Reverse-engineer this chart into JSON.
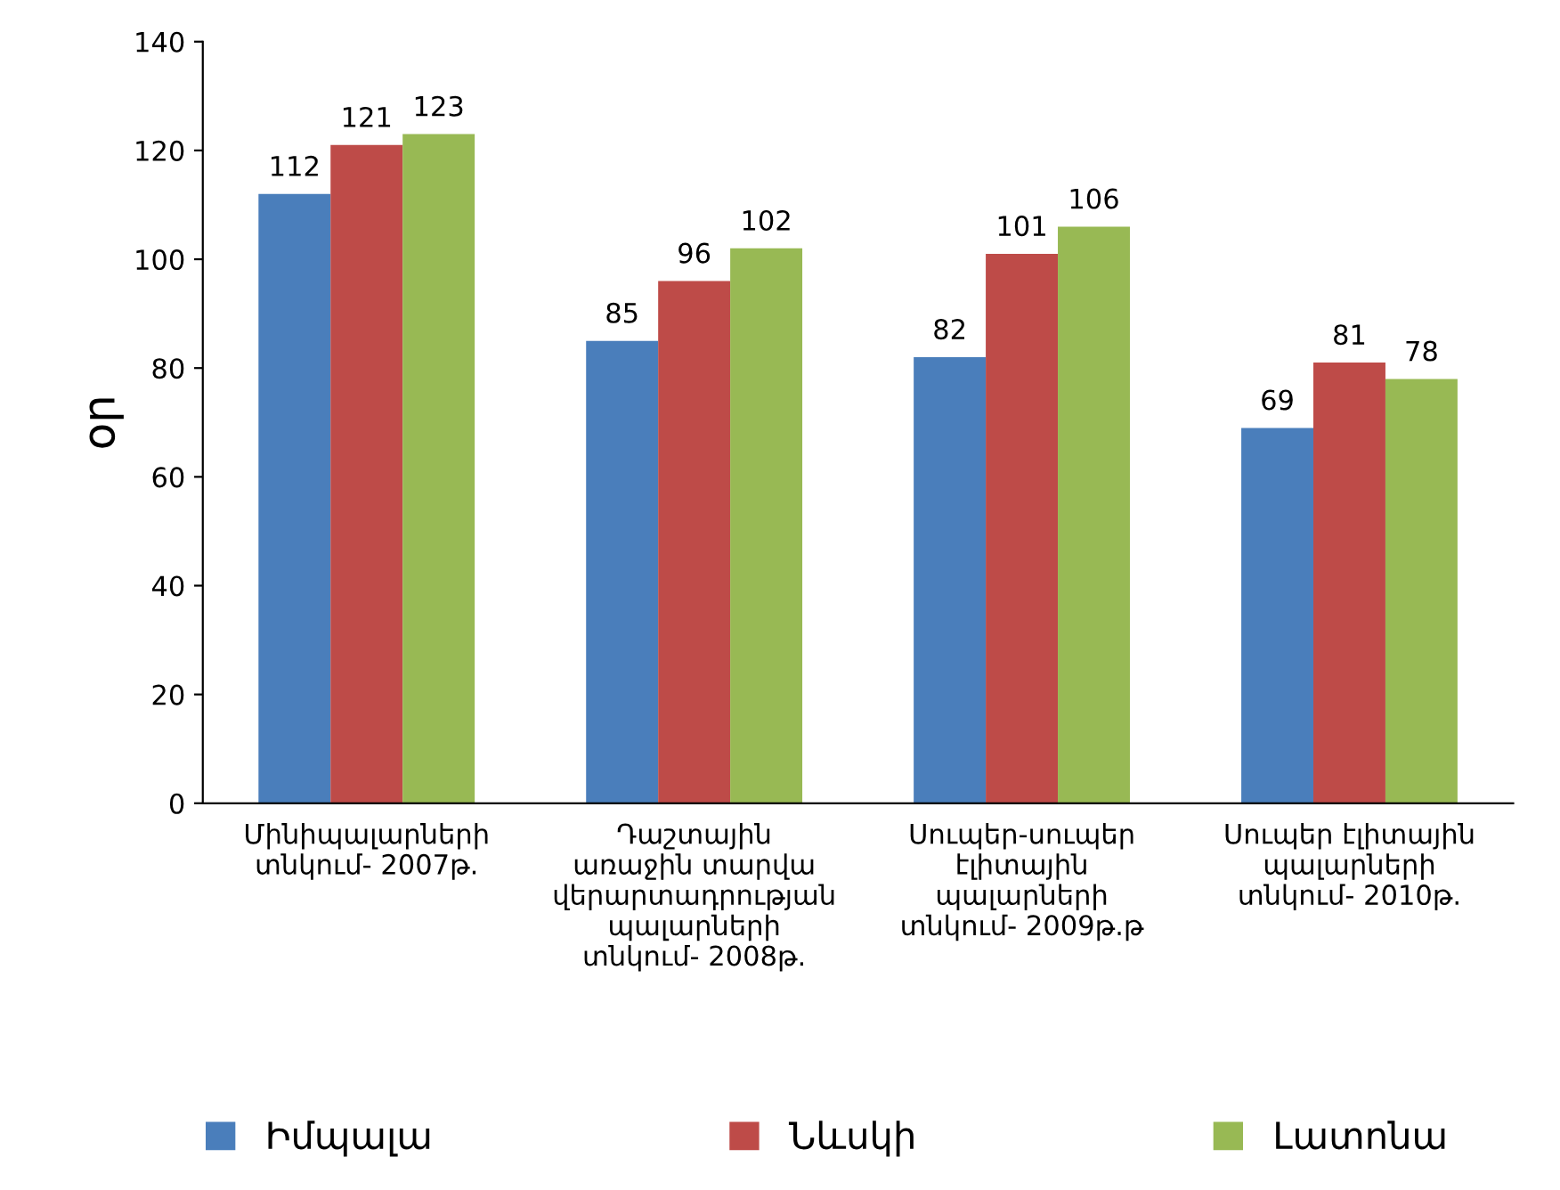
{
  "chart_data": {
    "type": "bar",
    "ylabel": "օր",
    "categories": [
      "Մինիպալարների\nտնկում- 2007թ.",
      "Դաշտային\nառաջին տարվա\nվերարտադրության\nպալարների\nտնկում- 2008թ.",
      "Սուպեր-սուպեր\nէլիտային\nպալարների\nտնկում- 2009թ.թ",
      "Սուպեր էլիտային\nպալարների\nտնկում- 2010թ."
    ],
    "series": [
      {
        "name": "Իմպալա",
        "color": "#4a7ebb",
        "values": [
          112,
          85,
          82,
          69
        ]
      },
      {
        "name": "Նևսկի",
        "color": "#be4b48",
        "values": [
          121,
          96,
          101,
          81
        ]
      },
      {
        "name": "Լատոնա",
        "color": "#98b954",
        "values": [
          123,
          102,
          106,
          78
        ]
      }
    ],
    "ylim": [
      0,
      140
    ],
    "yticks": [
      0,
      20,
      40,
      60,
      80,
      100,
      120,
      140
    ],
    "grid": false,
    "legend": "bottom",
    "data_labels": true
  }
}
